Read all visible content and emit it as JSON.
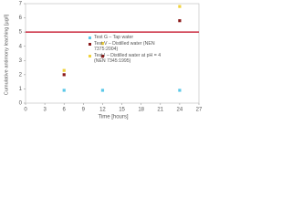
{
  "chart_data": {
    "type": "scatter",
    "x_label": "Time [hours]",
    "y_label": "Cumulative antimony leaching [µg/l]",
    "xlim": [
      0,
      27
    ],
    "xticks": [
      0,
      3,
      6,
      9,
      12,
      15,
      18,
      21,
      24,
      27
    ],
    "ylim": [
      0,
      7
    ],
    "yticks": [
      0,
      1,
      2,
      3,
      4,
      5,
      6,
      7
    ],
    "reference_line": {
      "value": 5,
      "color": "#c0001a"
    },
    "legend": "upper center",
    "series": [
      {
        "name": "Test G – Tap water",
        "color": "#5bc8e8",
        "x": [
          6,
          12,
          24
        ],
        "values": [
          0.9,
          0.9,
          0.9
        ]
      },
      {
        "name": "Test V – Distilled water (NEN 7375:2004)",
        "color": "#8b1a1a",
        "x": [
          6,
          12,
          24
        ],
        "values": [
          2.0,
          3.3,
          5.8
        ]
      },
      {
        "name": "Test I – Distilled water at pH = 4 (NEN 7345:1995)",
        "color": "#f0d23c",
        "x": [
          6,
          12,
          24
        ],
        "values": [
          2.3,
          4.2,
          6.8
        ]
      }
    ]
  }
}
